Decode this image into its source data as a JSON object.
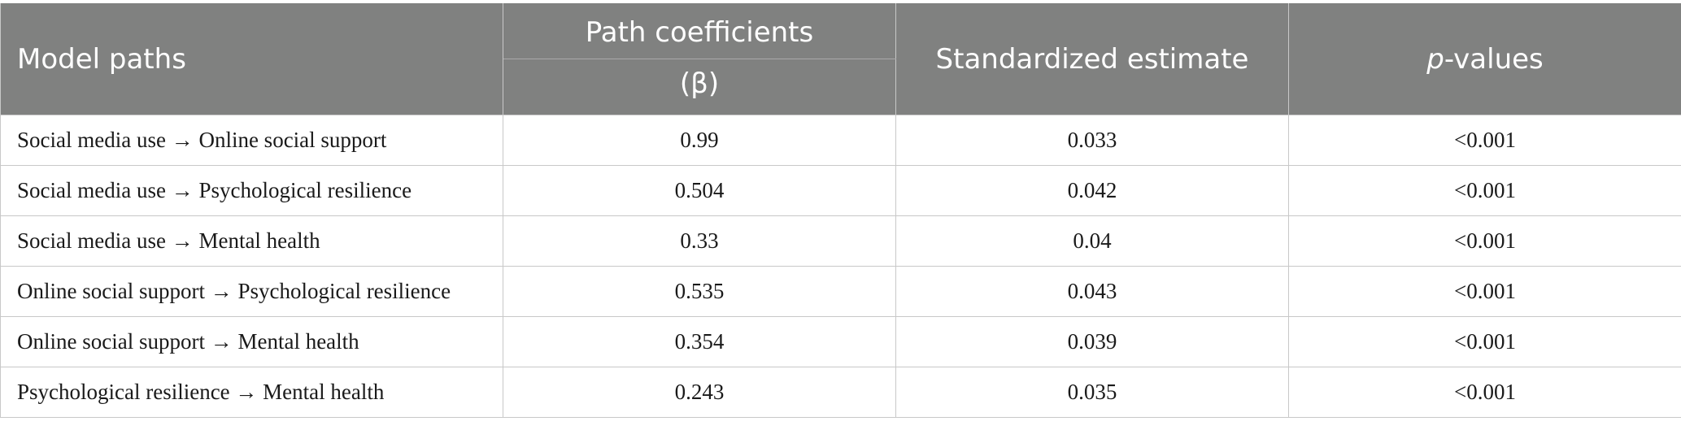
{
  "table": {
    "headers": {
      "model_paths": "Model paths",
      "path_coefficients": "Path coefficients",
      "beta": "(β)",
      "standardized_estimate": "Standardized estimate",
      "p_values_italic": "p",
      "p_values_rest": "-values"
    },
    "rows": [
      {
        "path": "Social media use → Online social support",
        "beta": "0.99",
        "std": "0.033",
        "p": "<0.001"
      },
      {
        "path": "Social media use → Psychological resilience",
        "beta": "0.504",
        "std": "0.042",
        "p": "<0.001"
      },
      {
        "path": "Social media use → Mental health",
        "beta": "0.33",
        "std": "0.04",
        "p": "<0.001"
      },
      {
        "path": "Online social support → Psychological resilience",
        "beta": "0.535",
        "std": "0.043",
        "p": "<0.001"
      },
      {
        "path": "Online social support → Mental health",
        "beta": "0.354",
        "std": "0.039",
        "p": "<0.001"
      },
      {
        "path": "Psychological resilience → Mental health",
        "beta": "0.243",
        "std": "0.035",
        "p": "<0.001"
      }
    ]
  }
}
